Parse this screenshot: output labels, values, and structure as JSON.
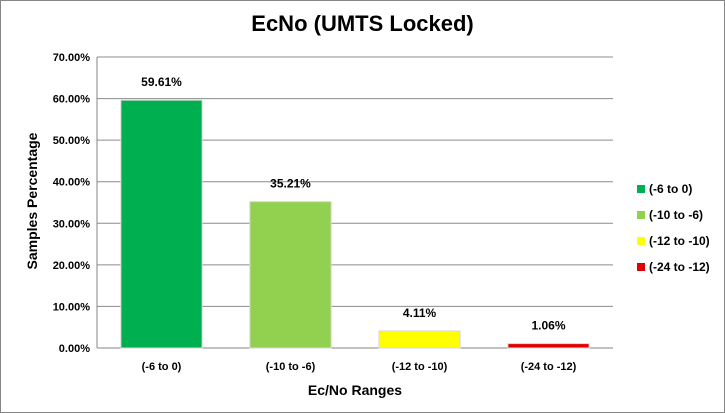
{
  "chart_data": {
    "type": "bar",
    "title": "EcNo (UMTS Locked)",
    "xlabel": "Ec/No Ranges",
    "ylabel": "Samples Percentage",
    "categories": [
      "(-6 to 0)",
      "(-10 to -6)",
      "(-12 to -10)",
      "(-24 to -12)"
    ],
    "values": [
      59.61,
      35.21,
      4.11,
      1.06
    ],
    "data_labels": [
      "59.61%",
      "35.21%",
      "4.11%",
      "1.06%"
    ],
    "colors": [
      "#00b050",
      "#92d050",
      "#ffff00",
      "#e00000"
    ],
    "ylim": [
      0,
      70
    ],
    "yticks": [
      0,
      10,
      20,
      30,
      40,
      50,
      60,
      70
    ],
    "ytick_labels": [
      "0.00%",
      "10.00%",
      "20.00%",
      "30.00%",
      "40.00%",
      "50.00%",
      "60.00%",
      "70.00%"
    ],
    "grid": true,
    "legend": {
      "position": "right",
      "entries": [
        "(-6 to 0)",
        "(-10 to -6)",
        "(-12 to -10)",
        "(-24 to -12)"
      ]
    }
  }
}
